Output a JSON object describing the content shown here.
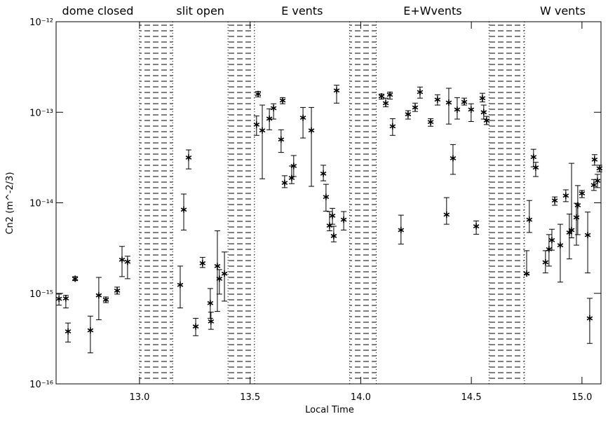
{
  "chart_data": {
    "type": "errorbar-scatter",
    "xlabel": "Local Time",
    "ylabel": "Cn2 (m^-2/3)",
    "xlim": [
      12.623,
      15.086
    ],
    "ylim": [
      1e-16,
      1e-12
    ],
    "ylog": true,
    "color": "#000000",
    "xticks": [
      {
        "value": 13,
        "label": "13.0"
      },
      13.5,
      {
        "value": 14,
        "label": "14.0"
      },
      14.5,
      {
        "value": 15,
        "label": "15.0"
      }
    ],
    "yticks": [
      {
        "value": 1e-16,
        "label": "10⁻¹⁶"
      },
      {
        "value": 1e-15,
        "label": "10⁻¹⁵"
      },
      {
        "value": 1e-14,
        "label": "10⁻¹⁴"
      },
      {
        "value": 1e-13,
        "label": "10⁻¹³"
      },
      {
        "value": 1e-12,
        "label": "10⁻¹²"
      }
    ],
    "bands": [
      [
        13.0,
        13.15
      ],
      [
        13.4,
        13.52
      ],
      [
        13.95,
        14.07
      ],
      [
        14.58,
        14.74
      ]
    ],
    "annotations": [
      "dome closed",
      "slit open",
      "E vents",
      "E+Wvents",
      "W vents"
    ],
    "x": [
      12.636,
      12.667,
      12.677,
      12.709,
      12.778,
      12.816,
      12.848,
      12.899,
      12.921,
      12.946,
      13.184,
      13.2,
      13.222,
      13.254,
      13.285,
      13.32,
      13.323,
      13.352,
      13.361,
      13.384,
      13.529,
      13.536,
      13.555,
      13.587,
      13.606,
      13.64,
      13.647,
      13.656,
      13.688,
      13.697,
      13.739,
      13.777,
      13.831,
      13.843,
      13.859,
      13.872,
      13.878,
      13.923,
      13.891,
      14.094,
      14.113,
      14.132,
      14.144,
      14.182,
      14.214,
      14.246,
      14.268,
      14.316,
      14.347,
      14.388,
      14.398,
      14.417,
      14.436,
      14.468,
      14.499,
      14.522,
      14.55,
      14.556,
      14.569,
      14.75,
      14.762,
      14.781,
      14.791,
      14.835,
      14.851,
      14.864,
      14.877,
      14.902,
      14.927,
      14.943,
      14.953,
      14.975,
      14.981,
      15.0,
      15.026,
      15.035,
      15.054,
      15.057,
      15.07,
      15.079
    ],
    "values": [
      8.7e-16,
      8.8e-16,
      3.8e-16,
      1.45e-15,
      3.9e-16,
      9.5e-16,
      8.5e-16,
      1.07e-15,
      2.35e-15,
      2.23e-15,
      1.24e-15,
      8.4e-15,
      3.16e-14,
      4.3e-16,
      2.15e-15,
      7.8e-16,
      4.9e-16,
      2e-15,
      1.45e-15,
      1.65e-15,
      7.3e-14,
      1.59e-13,
      6.3e-14,
      8.5e-14,
      1.11e-13,
      5e-14,
      1.35e-13,
      1.66e-14,
      1.88e-14,
      2.55e-14,
      8.7e-14,
      6.3e-14,
      2.1e-14,
      1.16e-14,
      5.6e-15,
      7.2e-15,
      4.3e-15,
      6.5e-15,
      1.74e-13,
      1.5e-13,
      1.26e-13,
      1.56e-13,
      7e-14,
      5e-15,
      9.5e-14,
      1.13e-13,
      1.67e-13,
      7.8e-14,
      1.38e-13,
      7.4e-15,
      1.28e-13,
      3.1e-14,
      1.07e-13,
      1.3e-13,
      1.07e-13,
      5.5e-15,
      1.43e-13,
      1e-13,
      8.1e-14,
      1.65e-15,
      6.5e-15,
      3.2e-14,
      2.45e-14,
      2.2e-15,
      3.07e-15,
      3.87e-15,
      1.06e-14,
      3.4e-15,
      1.2e-14,
      4.7e-15,
      5e-15,
      6.9e-15,
      9.4e-15,
      1.27e-14,
      4.4e-15,
      5.3e-16,
      1.57e-14,
      3e-14,
      1.75e-14,
      2.4e-14
    ],
    "lower": [
      7.4e-16,
      6.9e-16,
      2.9e-16,
      1.38e-15,
      2.2e-16,
      5.1e-16,
      7.9e-16,
      9.8e-16,
      1.53e-15,
      1.45e-15,
      6.9e-16,
      5e-15,
      2.37e-14,
      3.4e-16,
      1.93e-15,
      5.3e-16,
      4e-16,
      6.3e-16,
      9.8e-16,
      8.2e-16,
      5.55e-14,
      1.48e-13,
      1.84e-14,
      6.4e-14,
      8.4e-14,
      3.6e-14,
      1.24e-13,
      1.47e-14,
      1.63e-14,
      1.95e-14,
      5.2e-14,
      1.52e-14,
      1.75e-14,
      8.1e-15,
      4.9e-15,
      5.8e-15,
      3.7e-15,
      5e-15,
      1.26e-13,
      1.4e-13,
      1.15e-13,
      1.4e-13,
      5.55e-14,
      3.5e-15,
      8.4e-14,
      1.02e-13,
      1.43e-13,
      7e-14,
      1.2e-13,
      5.8e-15,
      7.4e-14,
      2.06e-14,
      8.4e-14,
      1.2e-13,
      7.9e-14,
      4.5e-15,
      1.3e-13,
      8.4e-14,
      7.3e-14,
      1.62e-15,
      4.7e-15,
      2.5e-14,
      1.95e-14,
      1.68e-15,
      2e-15,
      3e-15,
      9.4e-15,
      1.33e-15,
      1.03e-14,
      2.4e-15,
      4.1e-15,
      3.4e-15,
      4.45e-15,
      1.14e-14,
      1.68e-15,
      2.8e-16,
      1.37e-14,
      2.6e-14,
      1.47e-14,
      2.2e-14
    ],
    "upper": [
      9.8e-16,
      9.5e-16,
      4.7e-16,
      1.53e-15,
      5.6e-16,
      1.5e-15,
      9.1e-16,
      1.17e-15,
      3.3e-15,
      2.57e-15,
      2e-15,
      1.25e-14,
      3.84e-14,
      5.3e-16,
      2.5e-15,
      1.13e-15,
      6.2e-16,
      4.9e-15,
      1.83e-15,
      2.86e-15,
      9.1e-14,
      1.7e-13,
      1.2e-13,
      1.09e-13,
      1.24e-13,
      6.4e-14,
      1.45e-13,
      1.99e-14,
      2.55e-14,
      3.33e-14,
      1.13e-13,
      1.13e-13,
      2.6e-14,
      1.6e-14,
      8e-15,
      8.7e-15,
      5.5e-15,
      8e-15,
      1.99e-13,
      1.59e-13,
      1.43e-13,
      1.67e-13,
      8.5e-14,
      7.3e-15,
      1.04e-13,
      1.26e-13,
      1.9e-13,
      8.5e-14,
      1.56e-13,
      1.14e-14,
      1.84e-13,
      4.4e-14,
      1.45e-13,
      1.43e-13,
      1.24e-13,
      6.3e-15,
      1.62e-13,
      1.2e-13,
      9e-14,
      2.96e-15,
      1.06e-14,
      3.9e-14,
      2.8e-14,
      2.96e-15,
      4.46e-15,
      5.1e-15,
      1.16e-14,
      5.8e-15,
      1.39e-14,
      7.5e-15,
      2.73e-14,
      9.9e-15,
      1.55e-14,
      1.37e-14,
      7.9e-15,
      8.8e-16,
      1.81e-14,
      3.4e-14,
      2.06e-14,
      2.6e-14
    ]
  }
}
